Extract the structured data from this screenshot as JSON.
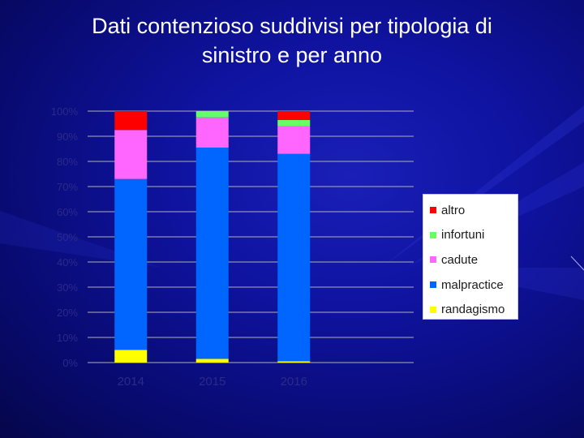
{
  "slide": {
    "title_line1": "Dati contenzioso suddivisi per tipologia di",
    "title_line2": "sinistro e per anno"
  },
  "chart_data": {
    "type": "bar",
    "stacked": "percent",
    "categories": [
      "2014",
      "2015",
      "2016"
    ],
    "y_ticks": [
      "0%",
      "10%",
      "20%",
      "30%",
      "40%",
      "50%",
      "60%",
      "70%",
      "80%",
      "90%",
      "100%"
    ],
    "ylim": [
      0,
      100
    ],
    "grid": true,
    "legend_position": "right",
    "series": [
      {
        "name": "randagismo",
        "color": "#ffff00",
        "values": [
          5,
          1.5,
          0.5
        ]
      },
      {
        "name": "malpractice",
        "color": "#0066ff",
        "values": [
          68,
          84,
          82.5
        ]
      },
      {
        "name": "cadute",
        "color": "#ff66ff",
        "values": [
          19.5,
          12,
          11
        ]
      },
      {
        "name": "infortuni",
        "color": "#66ff66",
        "values": [
          0,
          2.5,
          2.5
        ]
      },
      {
        "name": "altro",
        "color": "#ff0000",
        "values": [
          7.5,
          0,
          3.5
        ]
      }
    ]
  },
  "legend": {
    "items": [
      {
        "label": "altro",
        "color": "#ff0000"
      },
      {
        "label": "infortuni",
        "color": "#66ff66"
      },
      {
        "label": "cadute",
        "color": "#ff66ff"
      },
      {
        "label": "malpractice",
        "color": "#0066ff"
      },
      {
        "label": "randagismo",
        "color": "#ffff00"
      }
    ]
  },
  "colors": {
    "background": "#0f13a0",
    "gridline": "#b0b0b0",
    "tick_text": "#2a2a8a"
  }
}
